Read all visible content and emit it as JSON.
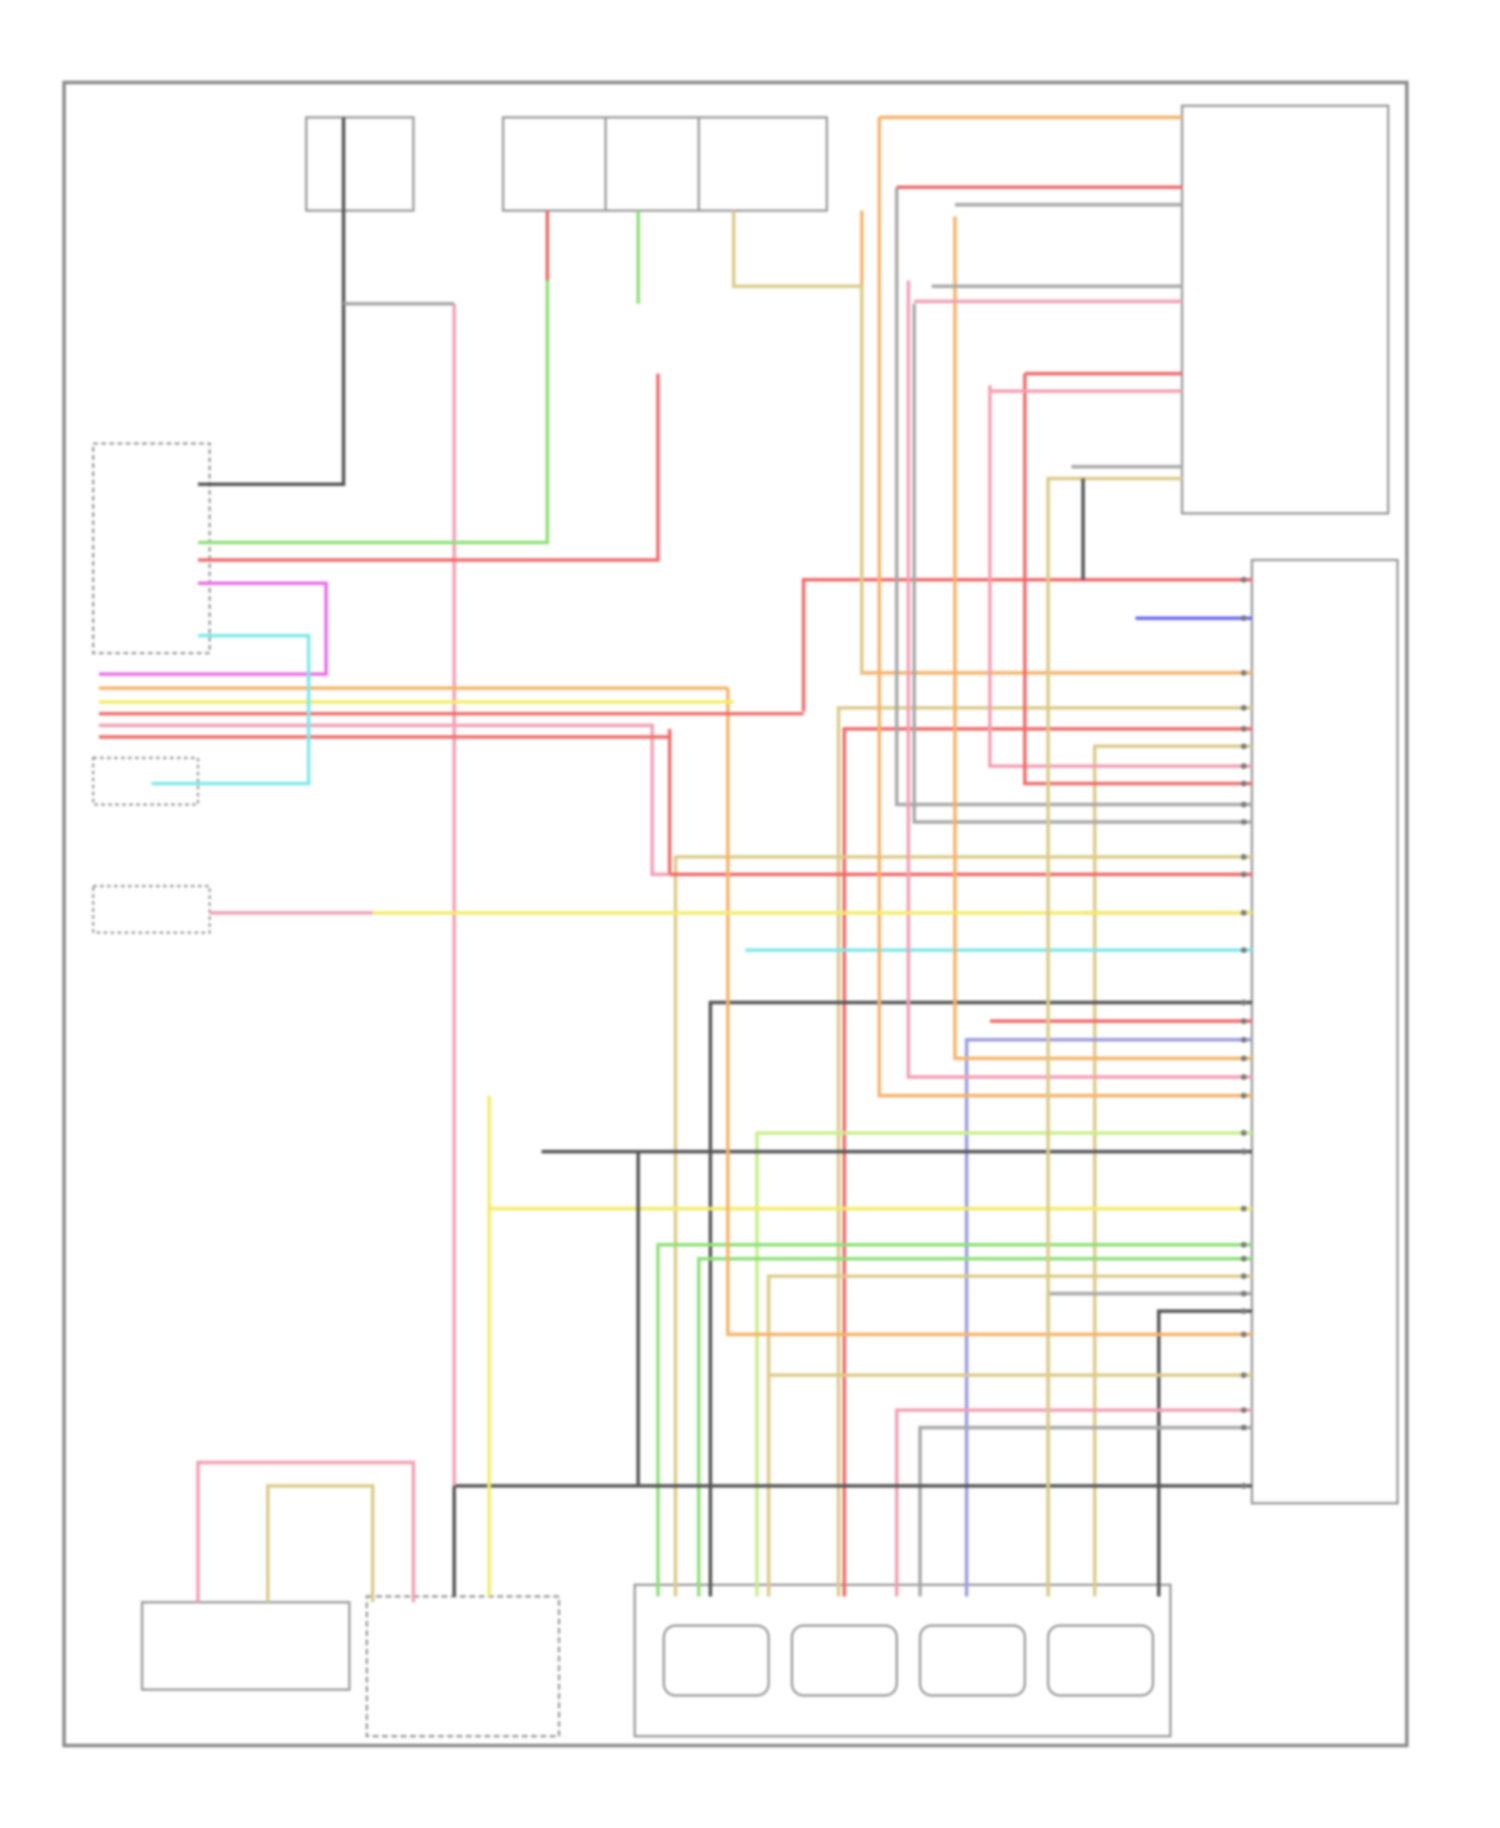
{
  "diagram": {
    "wire_colors": {
      "red": "#f06a6a",
      "pink": "#f2a0b4",
      "orange": "#f6b36a",
      "yellow": "#f3ec6a",
      "tan": "#dccb8a",
      "green": "#8fe07a",
      "lightgreen": "#c9ee8a",
      "blue": "#6a6af0",
      "cyan": "#7fe8ea",
      "magenta": "#e870e8",
      "gray": "#a8a8a8",
      "dark": "#555555",
      "violet": "#9c9ce0"
    },
    "frame_color": "#9a9a9a",
    "components": [
      {
        "id": "top-fuse-1"
      },
      {
        "id": "top-fuse-group"
      },
      {
        "id": "right-switch-assembly"
      },
      {
        "id": "right-control-module"
      },
      {
        "id": "left-module"
      },
      {
        "id": "bottom-switch-1"
      },
      {
        "id": "bottom-switch-2"
      },
      {
        "id": "motor-assembly"
      }
    ]
  }
}
